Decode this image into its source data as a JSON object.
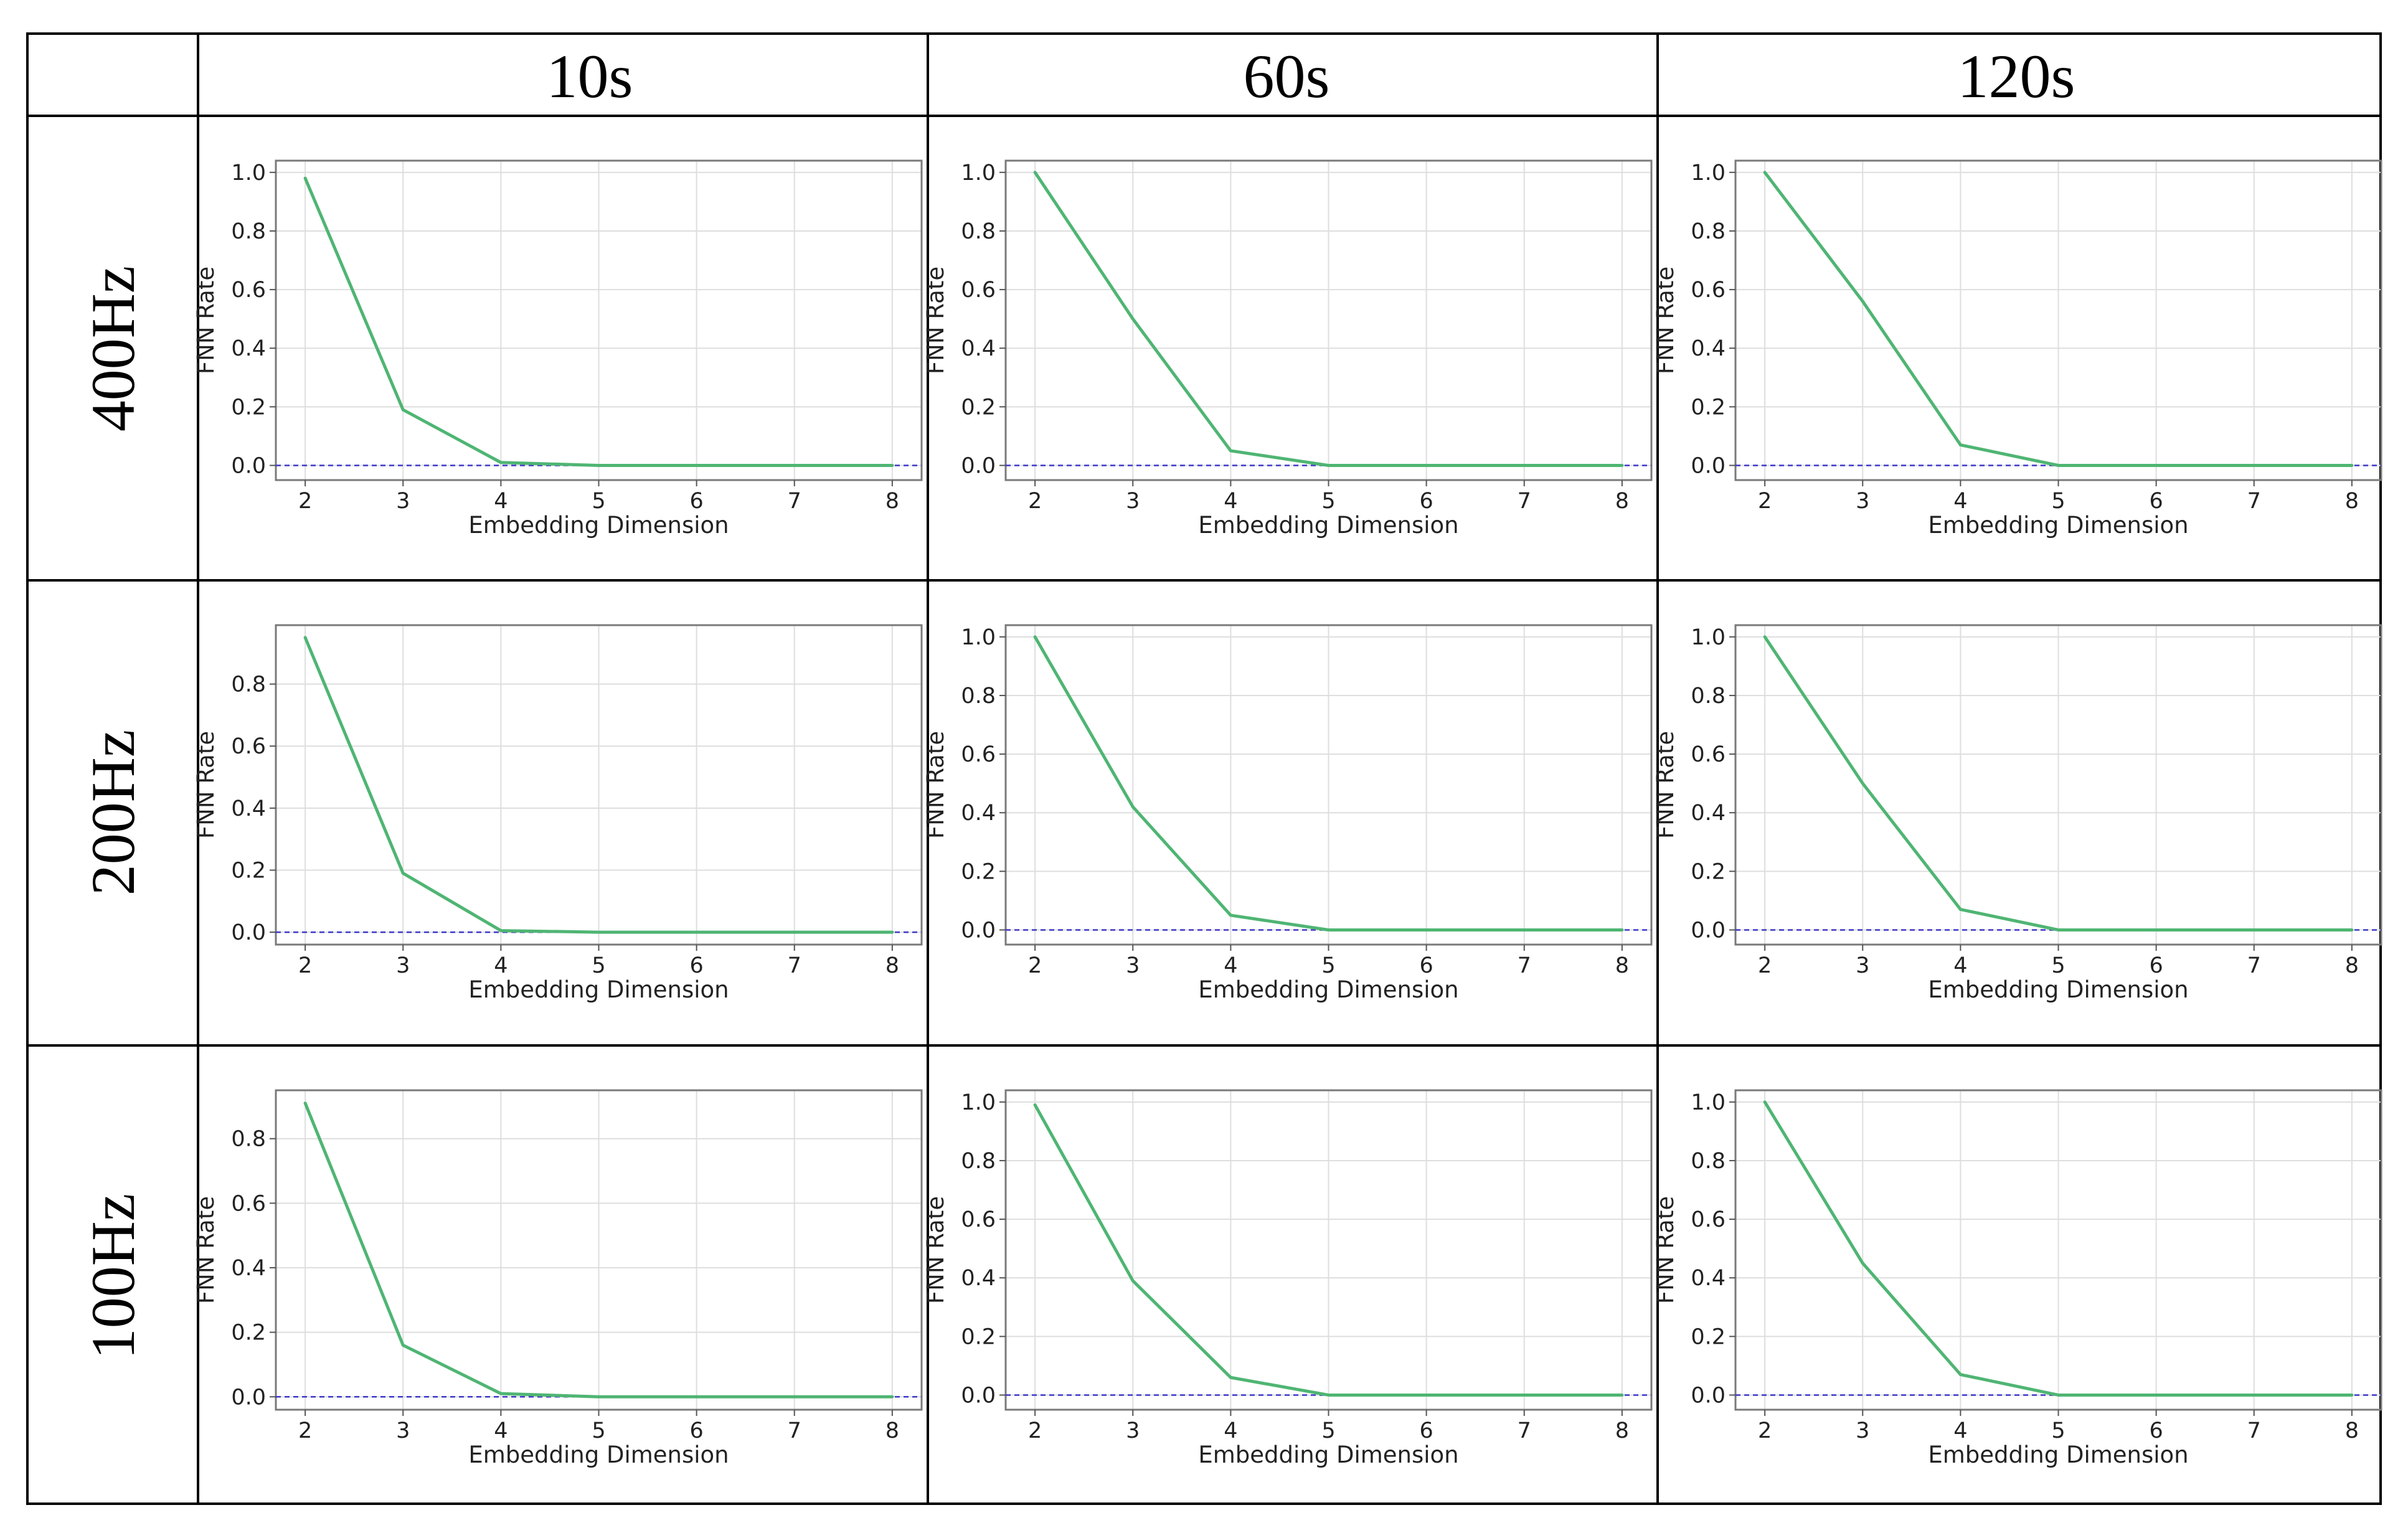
{
  "table": {
    "col_headers": [
      "10s",
      "60s",
      "120s"
    ],
    "row_headers": [
      "400Hz",
      "200Hz",
      "100Hz"
    ]
  },
  "chart_data": [
    {
      "type": "line",
      "row": "400Hz",
      "col": "10s",
      "xlabel": "Embedding Dimension",
      "ylabel": "FNN Rate",
      "x": [
        2,
        3,
        4,
        5,
        6,
        7,
        8
      ],
      "values": [
        0.98,
        0.19,
        0.01,
        0.0,
        0.0,
        0.0,
        0.0
      ],
      "yticks": [
        0.0,
        0.2,
        0.4,
        0.6,
        0.8,
        1.0
      ],
      "ylim": [
        -0.05,
        1.04
      ],
      "xlim": [
        1.7,
        8.3
      ],
      "baseline": 0.0,
      "grid": true
    },
    {
      "type": "line",
      "row": "400Hz",
      "col": "60s",
      "xlabel": "Embedding Dimension",
      "ylabel": "FNN Rate",
      "x": [
        2,
        3,
        4,
        5,
        6,
        7,
        8
      ],
      "values": [
        1.0,
        0.5,
        0.05,
        0.0,
        0.0,
        0.0,
        0.0
      ],
      "yticks": [
        0.0,
        0.2,
        0.4,
        0.6,
        0.8,
        1.0
      ],
      "ylim": [
        -0.05,
        1.04
      ],
      "xlim": [
        1.7,
        8.3
      ],
      "baseline": 0.0,
      "grid": true
    },
    {
      "type": "line",
      "row": "400Hz",
      "col": "120s",
      "xlabel": "Embedding Dimension",
      "ylabel": "FNN Rate",
      "x": [
        2,
        3,
        4,
        5,
        6,
        7,
        8
      ],
      "values": [
        1.0,
        0.56,
        0.07,
        0.0,
        0.0,
        0.0,
        0.0
      ],
      "yticks": [
        0.0,
        0.2,
        0.4,
        0.6,
        0.8,
        1.0
      ],
      "ylim": [
        -0.05,
        1.04
      ],
      "xlim": [
        1.7,
        8.3
      ],
      "baseline": 0.0,
      "grid": true
    },
    {
      "type": "line",
      "row": "200Hz",
      "col": "10s",
      "xlabel": "Embedding Dimension",
      "ylabel": "FNN Rate",
      "x": [
        2,
        3,
        4,
        5,
        6,
        7,
        8
      ],
      "values": [
        0.95,
        0.19,
        0.005,
        0.0,
        0.0,
        0.0,
        0.0
      ],
      "yticks": [
        0.0,
        0.2,
        0.4,
        0.6,
        0.8
      ],
      "ylim": [
        -0.04,
        0.99
      ],
      "xlim": [
        1.7,
        8.3
      ],
      "baseline": 0.0,
      "grid": true
    },
    {
      "type": "line",
      "row": "200Hz",
      "col": "60s",
      "xlabel": "Embedding Dimension",
      "ylabel": "FNN Rate",
      "x": [
        2,
        3,
        4,
        5,
        6,
        7,
        8
      ],
      "values": [
        1.0,
        0.42,
        0.05,
        0.0,
        0.0,
        0.0,
        0.0
      ],
      "yticks": [
        0.0,
        0.2,
        0.4,
        0.6,
        0.8,
        1.0
      ],
      "ylim": [
        -0.05,
        1.04
      ],
      "xlim": [
        1.7,
        8.3
      ],
      "baseline": 0.0,
      "grid": true
    },
    {
      "type": "line",
      "row": "200Hz",
      "col": "120s",
      "xlabel": "Embedding Dimension",
      "ylabel": "FNN Rate",
      "x": [
        2,
        3,
        4,
        5,
        6,
        7,
        8
      ],
      "values": [
        1.0,
        0.5,
        0.07,
        0.0,
        0.0,
        0.0,
        0.0
      ],
      "yticks": [
        0.0,
        0.2,
        0.4,
        0.6,
        0.8,
        1.0
      ],
      "ylim": [
        -0.05,
        1.04
      ],
      "xlim": [
        1.7,
        8.3
      ],
      "baseline": 0.0,
      "grid": true
    },
    {
      "type": "line",
      "row": "100Hz",
      "col": "10s",
      "xlabel": "Embedding Dimension",
      "ylabel": "FNN Rate",
      "x": [
        2,
        3,
        4,
        5,
        6,
        7,
        8
      ],
      "values": [
        0.91,
        0.16,
        0.01,
        0.0,
        0.0,
        0.0,
        0.0
      ],
      "yticks": [
        0.0,
        0.2,
        0.4,
        0.6,
        0.8
      ],
      "ylim": [
        -0.04,
        0.95
      ],
      "xlim": [
        1.7,
        8.3
      ],
      "baseline": 0.0,
      "grid": true
    },
    {
      "type": "line",
      "row": "100Hz",
      "col": "60s",
      "xlabel": "Embedding Dimension",
      "ylabel": "FNN Rate",
      "x": [
        2,
        3,
        4,
        5,
        6,
        7,
        8
      ],
      "values": [
        0.99,
        0.39,
        0.06,
        0.0,
        0.0,
        0.0,
        0.0
      ],
      "yticks": [
        0.0,
        0.2,
        0.4,
        0.6,
        0.8,
        1.0
      ],
      "ylim": [
        -0.05,
        1.04
      ],
      "xlim": [
        1.7,
        8.3
      ],
      "baseline": 0.0,
      "grid": true
    },
    {
      "type": "line",
      "row": "100Hz",
      "col": "120s",
      "xlabel": "Embedding Dimension",
      "ylabel": "FNN Rate",
      "x": [
        2,
        3,
        4,
        5,
        6,
        7,
        8
      ],
      "values": [
        1.0,
        0.45,
        0.07,
        0.0,
        0.0,
        0.0,
        0.0
      ],
      "yticks": [
        0.0,
        0.2,
        0.4,
        0.6,
        0.8,
        1.0
      ],
      "ylim": [
        -0.05,
        1.04
      ],
      "xlim": [
        1.7,
        8.3
      ],
      "baseline": 0.0,
      "grid": true
    }
  ]
}
